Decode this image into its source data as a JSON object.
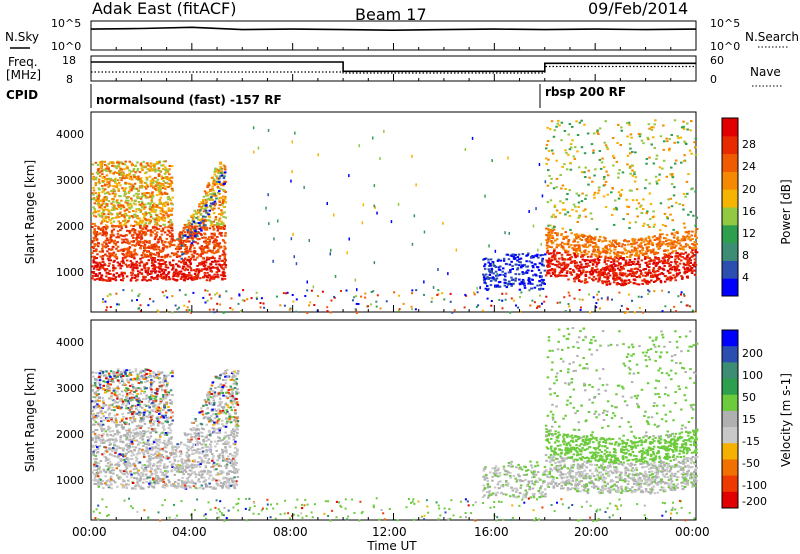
{
  "header": {
    "station": "Adak East (fitACF)",
    "beam": "Beam 17",
    "date": "09/Feb/2014"
  },
  "left_labels": {
    "nsky": "N.Sky",
    "freq_line1": "Freq.",
    "freq_line2": "[MHz]",
    "cpid": "CPID"
  },
  "right_labels": {
    "nsearch": "N.Search",
    "nave": "Nave"
  },
  "cpid_segments": [
    {
      "label": "normalsound (fast) -157 RF"
    },
    {
      "label": "rbsp 200 RF"
    }
  ],
  "colors": {
    "power_scale": [
      "#0000ff",
      "#2b4fb0",
      "#3d8c74",
      "#2e9e4f",
      "#93c843",
      "#f4b400",
      "#f58a00",
      "#f05a00",
      "#e82a00",
      "#e00000"
    ],
    "velocity_scale": [
      "#0000ff",
      "#2b4fb0",
      "#3d8c74",
      "#2e9e4f",
      "#6ccb3c",
      "#b0b0b0",
      "#c8c8c8",
      "#f5b000",
      "#f07000",
      "#ee3a00",
      "#e00000"
    ]
  },
  "chart_data": [
    {
      "type": "line",
      "name_panel": "noise",
      "y_left_ticks": [
        "10^5",
        "10^0"
      ],
      "y_right_ticks": [
        "10^5",
        "10^0"
      ],
      "x_hours": [
        0,
        2,
        4,
        6,
        8,
        10,
        12,
        14,
        16,
        18,
        20,
        22,
        24
      ],
      "series": [
        {
          "values": [
            4.3,
            4.4,
            4.6,
            4.2,
            4.3,
            4.2,
            4.1,
            4.2,
            4.3,
            4.2,
            4.3,
            4.2,
            4.3
          ]
        }
      ]
    },
    {
      "type": "line",
      "name_panel": "frequency",
      "y_left_ticks": [
        "18",
        "8"
      ],
      "y_right_ticks": [
        "60",
        "0"
      ],
      "series": [
        {
          "segments": [
            [
              0,
              10.0,
              15.6
            ],
            [
              10.0,
              18.0,
              11.9
            ],
            [
              18.0,
              24,
              15.1
            ]
          ]
        },
        {
          "segments": [
            [
              0,
              10.0,
              11.6
            ],
            [
              10.0,
              18.0,
              11.2
            ],
            [
              18.0,
              24,
              13.8
            ]
          ]
        }
      ]
    },
    {
      "type": "heatmap",
      "name_panel": "power",
      "xlabel": "",
      "ylabel": "Slant Range [km]",
      "xlim": [
        0,
        24
      ],
      "ylim": [
        200,
        4550
      ],
      "y_ticks": [
        1000,
        2000,
        3000,
        4000
      ],
      "colorbar": {
        "label": "Power [dB]",
        "ticks": [
          "4",
          "8",
          "12",
          "16",
          "20",
          "24",
          "28"
        ]
      }
    },
    {
      "type": "heatmap",
      "name_panel": "velocity",
      "xlabel": "Time UT",
      "ylabel": "Slant Range [km]",
      "xlim": [
        0,
        24
      ],
      "ylim": [
        200,
        4550
      ],
      "y_ticks": [
        1000,
        2000,
        3000,
        4000
      ],
      "x_ticks": [
        "00:00",
        "04:00",
        "08:00",
        "12:00",
        "16:00",
        "20:00",
        "00:00"
      ],
      "colorbar": {
        "label": "Velocity [m s-1]",
        "ticks": [
          "200",
          "100",
          "50",
          "15",
          "-15",
          "-50",
          "-100",
          "-200"
        ]
      }
    }
  ]
}
